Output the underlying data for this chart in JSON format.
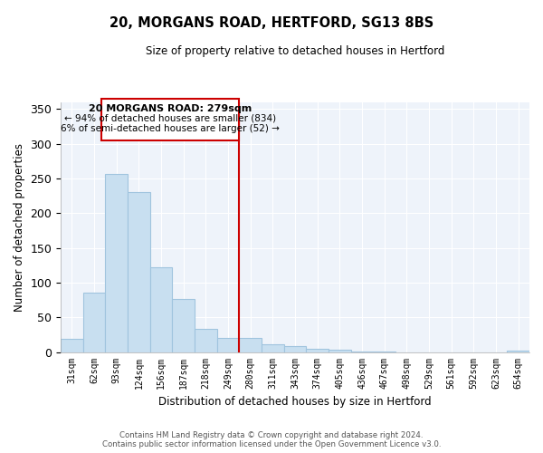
{
  "title": "20, MORGANS ROAD, HERTFORD, SG13 8BS",
  "subtitle": "Size of property relative to detached houses in Hertford",
  "xlabel": "Distribution of detached houses by size in Hertford",
  "ylabel": "Number of detached properties",
  "categories": [
    "31sqm",
    "62sqm",
    "93sqm",
    "124sqm",
    "156sqm",
    "187sqm",
    "218sqm",
    "249sqm",
    "280sqm",
    "311sqm",
    "343sqm",
    "374sqm",
    "405sqm",
    "436sqm",
    "467sqm",
    "498sqm",
    "529sqm",
    "561sqm",
    "592sqm",
    "623sqm",
    "654sqm"
  ],
  "values": [
    19,
    86,
    257,
    230,
    122,
    76,
    33,
    20,
    20,
    11,
    9,
    4,
    3,
    1,
    1,
    0,
    0,
    0,
    0,
    0,
    2
  ],
  "bar_color": "#c8dff0",
  "bar_edge_color": "#a0c4de",
  "highlight_line_color": "#cc0000",
  "highlight_bar_index": 8,
  "ylim": [
    0,
    360
  ],
  "yticks": [
    0,
    50,
    100,
    150,
    200,
    250,
    300,
    350
  ],
  "annotation_title": "20 MORGANS ROAD: 279sqm",
  "annotation_line1": "← 94% of detached houses are smaller (834)",
  "annotation_line2": "6% of semi-detached houses are larger (52) →",
  "annotation_box_color": "#ffffff",
  "annotation_box_edge": "#cc0000",
  "footer1": "Contains HM Land Registry data © Crown copyright and database right 2024.",
  "footer2": "Contains public sector information licensed under the Open Government Licence v3.0.",
  "background_color": "#ffffff",
  "plot_bg_color": "#eef3fa",
  "grid_color": "#ffffff"
}
